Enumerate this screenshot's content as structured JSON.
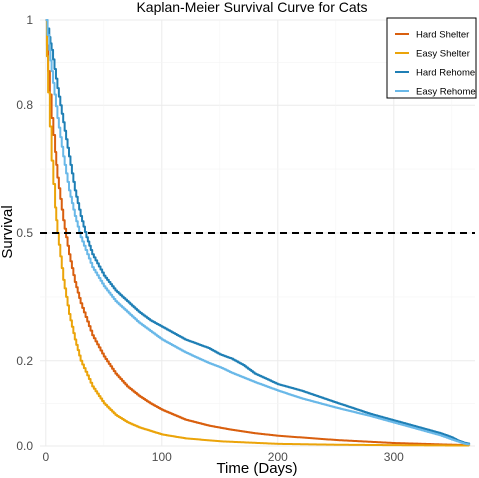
{
  "chart_data": {
    "type": "line",
    "title": "Kaplan-Meier Survival Curve for Cats",
    "xlabel": "Time (Days)",
    "ylabel": "Survival",
    "xlim": [
      -5,
      370
    ],
    "ylim": [
      0,
      1
    ],
    "x_ticks": [
      0,
      100,
      200,
      300
    ],
    "x_tick_labels": [
      "0",
      "100",
      "200",
      "300"
    ],
    "y_ticks": [
      0,
      0.2,
      0.5,
      0.8,
      1
    ],
    "y_tick_labels": [
      "0.0",
      "0.2",
      "0.5",
      "0.8",
      "1"
    ],
    "grid": true,
    "legend_position": "top-right",
    "reference_line": {
      "y": 0.5,
      "style": "dashed",
      "color": "#000000"
    },
    "series": [
      {
        "name": "Hard Shelter",
        "color": "#D95F0E",
        "x": [
          0,
          2,
          5,
          8,
          10,
          15,
          20,
          25,
          30,
          40,
          50,
          60,
          70,
          80,
          90,
          100,
          120,
          140,
          160,
          180,
          200,
          250,
          300,
          350,
          365
        ],
        "y": [
          1.0,
          0.88,
          0.77,
          0.69,
          0.63,
          0.53,
          0.45,
          0.385,
          0.335,
          0.26,
          0.21,
          0.17,
          0.14,
          0.118,
          0.1,
          0.085,
          0.062,
          0.048,
          0.038,
          0.03,
          0.024,
          0.014,
          0.007,
          0.003,
          0.002
        ]
      },
      {
        "name": "Easy Shelter",
        "color": "#EBA40A",
        "x": [
          0,
          2,
          5,
          8,
          10,
          15,
          20,
          25,
          30,
          40,
          50,
          60,
          70,
          80,
          100,
          120,
          150,
          200,
          250,
          300,
          365
        ],
        "y": [
          1.0,
          0.83,
          0.67,
          0.56,
          0.5,
          0.39,
          0.31,
          0.25,
          0.2,
          0.14,
          0.1,
          0.073,
          0.056,
          0.044,
          0.027,
          0.018,
          0.011,
          0.005,
          0.003,
          0.002,
          0.001
        ]
      },
      {
        "name": "Hard Rehome",
        "color": "#1F7FB5",
        "x": [
          0,
          3,
          5,
          10,
          15,
          20,
          25,
          30,
          35,
          40,
          50,
          60,
          70,
          80,
          90,
          100,
          110,
          120,
          140,
          150,
          160,
          170,
          180,
          200,
          220,
          250,
          280,
          300,
          320,
          340,
          350,
          355,
          360,
          365
        ],
        "y": [
          1.0,
          0.96,
          0.93,
          0.84,
          0.76,
          0.68,
          0.6,
          0.54,
          0.49,
          0.45,
          0.4,
          0.365,
          0.34,
          0.315,
          0.295,
          0.28,
          0.265,
          0.25,
          0.23,
          0.215,
          0.205,
          0.19,
          0.17,
          0.145,
          0.13,
          0.102,
          0.075,
          0.06,
          0.045,
          0.03,
          0.02,
          0.013,
          0.008,
          0.005
        ]
      },
      {
        "name": "Easy Rehome",
        "color": "#69B8E8",
        "x": [
          0,
          3,
          5,
          10,
          15,
          20,
          25,
          30,
          40,
          50,
          60,
          70,
          80,
          90,
          100,
          120,
          140,
          150,
          160,
          180,
          200,
          220,
          250,
          280,
          300,
          320,
          340,
          350,
          360,
          365
        ],
        "y": [
          1.0,
          0.93,
          0.88,
          0.77,
          0.68,
          0.6,
          0.54,
          0.49,
          0.42,
          0.375,
          0.34,
          0.315,
          0.29,
          0.27,
          0.25,
          0.22,
          0.195,
          0.185,
          0.172,
          0.15,
          0.13,
          0.112,
          0.09,
          0.07,
          0.055,
          0.04,
          0.025,
          0.015,
          0.006,
          0.003
        ]
      }
    ]
  }
}
